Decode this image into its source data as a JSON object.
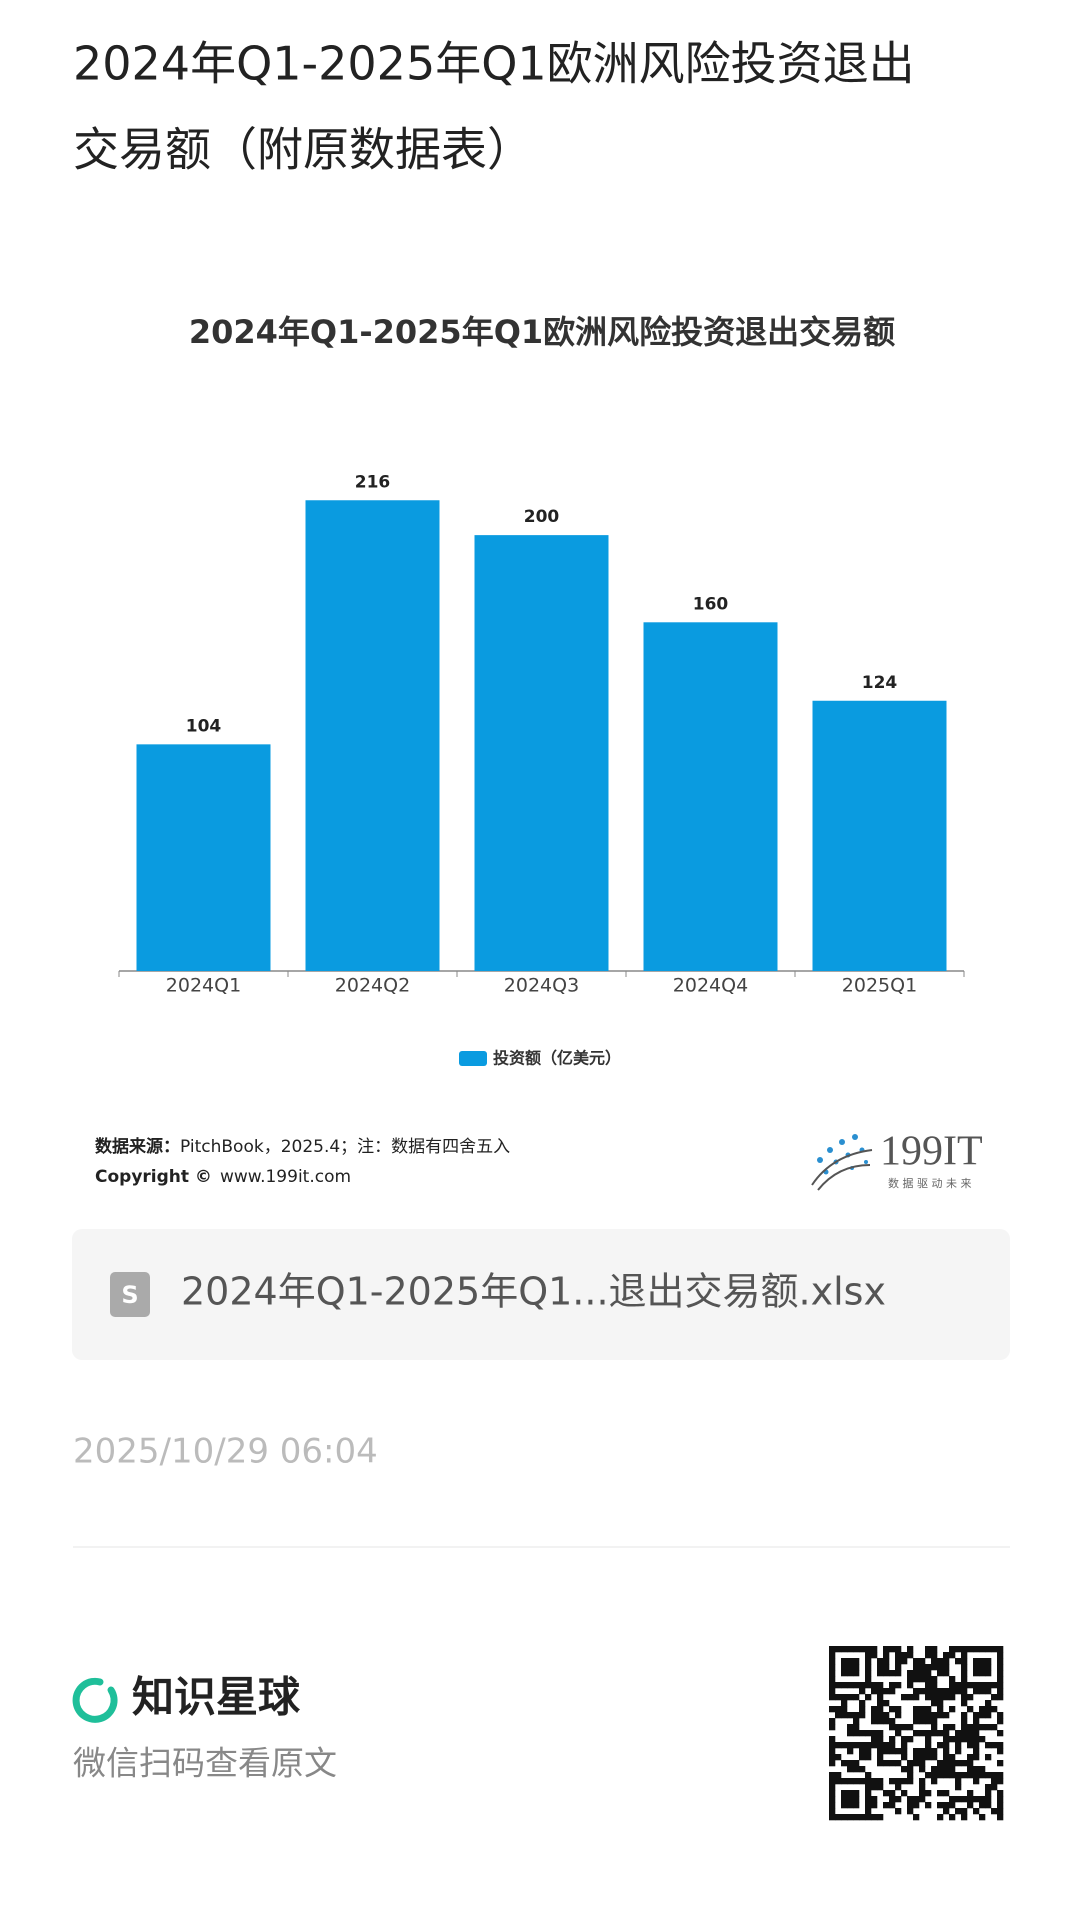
{
  "header": {
    "title": "2024年Q1-2025年Q1欧洲风险投资退出交易额（附原数据表）"
  },
  "chart_data": {
    "type": "bar",
    "title": "2024年Q1-2025年Q1欧洲风险投资退出交易额",
    "categories": [
      "2024Q1",
      "2024Q2",
      "2024Q3",
      "2024Q4",
      "2025Q1"
    ],
    "series": [
      {
        "name": "投资额（亿美元）",
        "color": "#0a9be0",
        "values": [
          104,
          216,
          200,
          160,
          124
        ]
      }
    ]
  },
  "source": {
    "label": "数据来源：",
    "text": "PitchBook，2025.4；注：数据有四舍五入",
    "copyright": "Copyright ©",
    "site": "www.199it.com",
    "logo": "199IT",
    "logo_slogan": "数 据 驱 动 未 来"
  },
  "file": {
    "name": "2024年Q1-2025年Q1...退出交易额.xlsx"
  },
  "timestamp": "2025/10/29 06:04",
  "footer": {
    "brand": "知识星球",
    "caption": "微信扫码查看原文"
  }
}
